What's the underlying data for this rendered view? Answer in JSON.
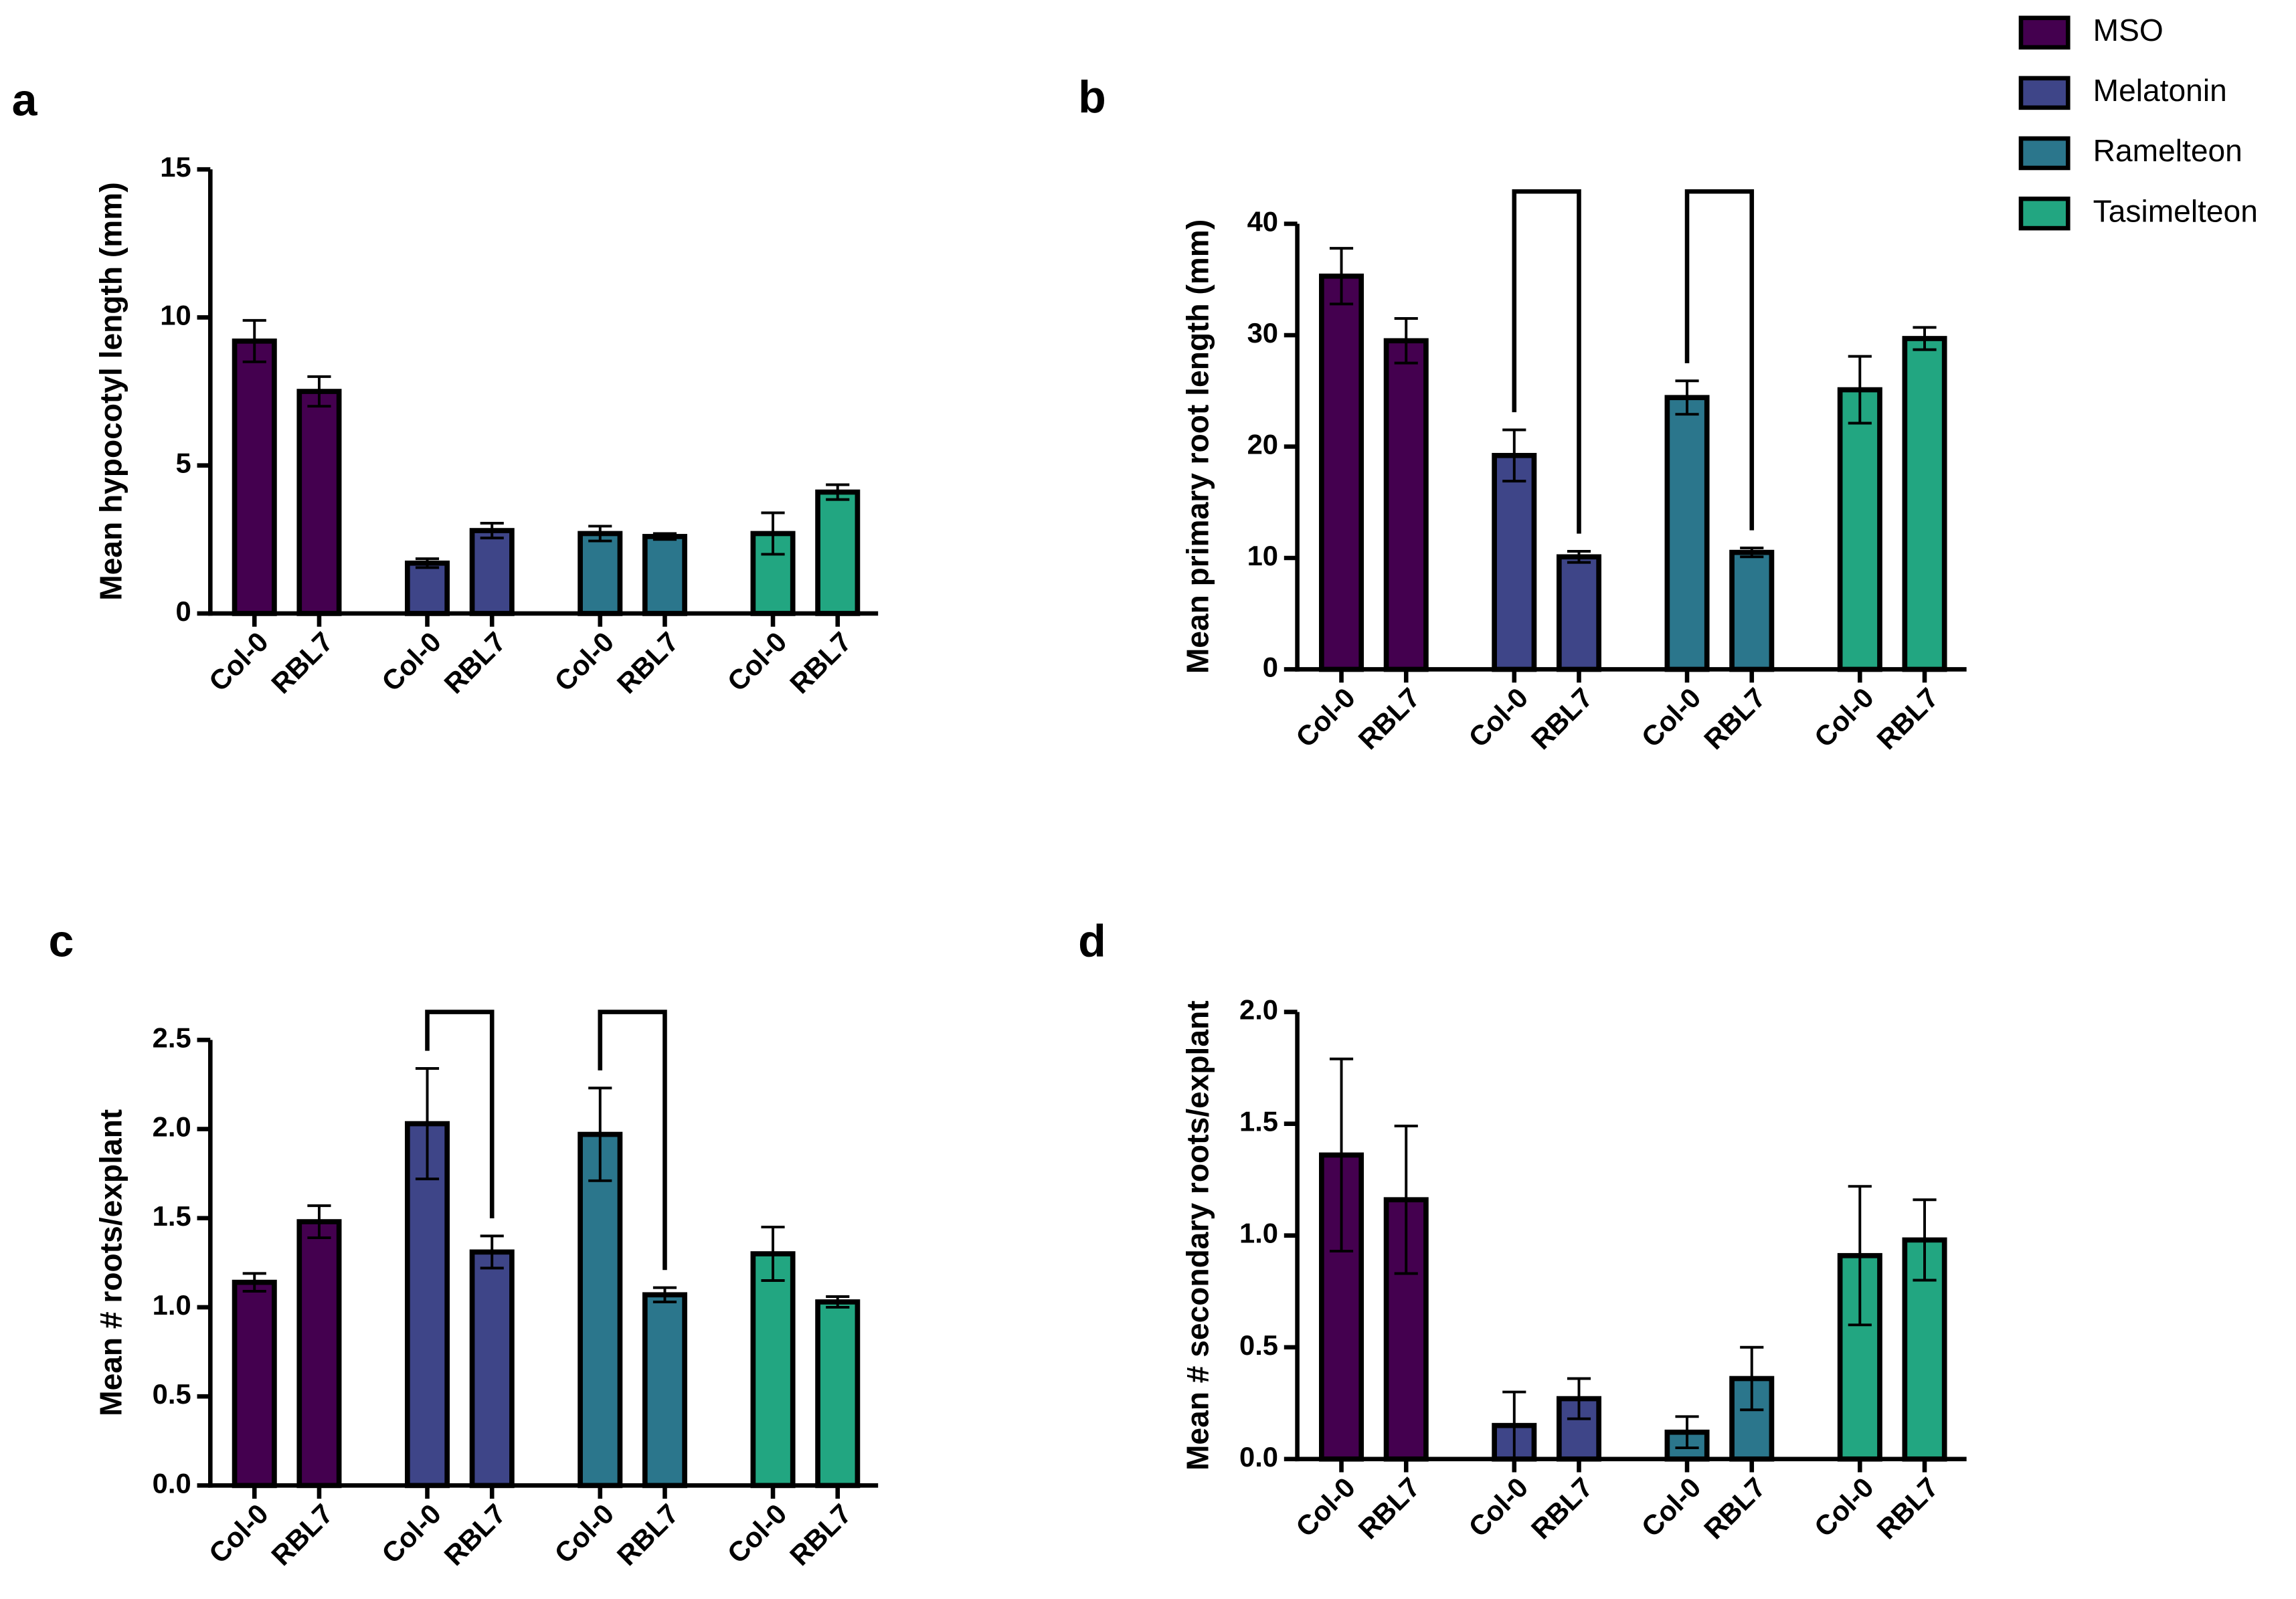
{
  "legend": [
    {
      "name": "MSO",
      "color": "#44004f"
    },
    {
      "name": "Melatonin",
      "color": "#3e4588"
    },
    {
      "name": "Ramelteon",
      "color": "#2b768c"
    },
    {
      "name": "Tasimelteon",
      "color": "#22a681"
    }
  ],
  "chart_data": [
    {
      "type": "bar",
      "panel": "a",
      "ylabel": "Mean hypocotyl length (mm)",
      "categories": [
        "Col-0",
        "RBL7"
      ],
      "ylim": [
        0,
        15
      ],
      "yticks": [
        0,
        5,
        10,
        15
      ],
      "series": [
        {
          "values": [
            9.2,
            7.5
          ],
          "errors": [
            0.7,
            0.5
          ]
        },
        {
          "values": [
            1.7,
            2.8
          ],
          "errors": [
            0.15,
            0.25
          ]
        },
        {
          "values": [
            2.7,
            2.6
          ],
          "errors": [
            0.25,
            0.1
          ]
        },
        {
          "values": [
            2.7,
            4.1
          ],
          "errors": [
            0.7,
            0.25
          ]
        }
      ]
    },
    {
      "type": "bar",
      "panel": "b",
      "ylabel": "Mean primary root length (mm)",
      "categories": [
        "Col-0",
        "RBL7"
      ],
      "ylim": [
        0,
        40
      ],
      "yticks": [
        0,
        10,
        20,
        30,
        40
      ],
      "series": [
        {
          "values": [
            35.3,
            29.5
          ],
          "errors": [
            2.5,
            2.0
          ]
        },
        {
          "values": [
            19.2,
            10.1
          ],
          "errors": [
            2.3,
            0.5
          ]
        },
        {
          "values": [
            24.4,
            10.5
          ],
          "errors": [
            1.5,
            0.4
          ]
        },
        {
          "values": [
            25.1,
            29.7
          ],
          "errors": [
            3.0,
            1.0
          ]
        }
      ]
    },
    {
      "type": "bar",
      "panel": "c",
      "ylabel": "Mean # roots/explant",
      "categories": [
        "Col-0",
        "RBL7"
      ],
      "ylim": [
        0,
        2.5
      ],
      "yticks": [
        {
          "value": 0,
          "label": "0.0"
        },
        0.5,
        {
          "value": 1,
          "label": "1.0"
        },
        1.5,
        {
          "value": 2,
          "label": "2.0"
        },
        2.5
      ],
      "series": [
        {
          "values": [
            1.14,
            1.48
          ],
          "errors": [
            0.05,
            0.09
          ]
        },
        {
          "values": [
            2.03,
            1.31
          ],
          "errors": [
            0.31,
            0.09
          ]
        },
        {
          "values": [
            1.97,
            1.07
          ],
          "errors": [
            0.26,
            0.04
          ]
        },
        {
          "values": [
            1.3,
            1.03
          ],
          "errors": [
            0.15,
            0.03
          ]
        }
      ]
    },
    {
      "type": "bar",
      "panel": "d",
      "ylabel": "Mean # secondary roots/explant",
      "categories": [
        "Col-0",
        "RBL7"
      ],
      "ylim": [
        0,
        2
      ],
      "yticks": [
        {
          "value": 0,
          "label": "0.0"
        },
        0.5,
        {
          "value": 1,
          "label": "1.0"
        },
        1.5,
        {
          "value": 2,
          "label": "2.0"
        }
      ],
      "series": [
        {
          "values": [
            1.36,
            1.16
          ],
          "errors": [
            0.43,
            0.33
          ]
        },
        {
          "values": [
            0.15,
            0.27
          ],
          "errors": [
            0.15,
            0.09
          ]
        },
        {
          "values": [
            0.12,
            0.36
          ],
          "errors": [
            0.07,
            0.14
          ]
        },
        {
          "values": [
            0.91,
            0.98
          ],
          "errors": [
            0.31,
            0.18
          ]
        }
      ]
    }
  ]
}
